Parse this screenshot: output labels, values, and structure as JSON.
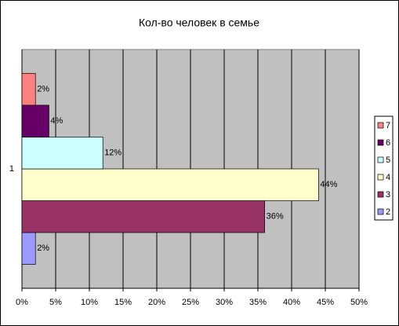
{
  "chart_data": {
    "type": "hbar",
    "title": "Кол-во человек в семье",
    "categories": [
      "1"
    ],
    "series": [
      {
        "name": "2",
        "color": "#9999ff",
        "values": [
          2
        ],
        "value_labels": [
          "2%"
        ]
      },
      {
        "name": "3",
        "color": "#993366",
        "values": [
          36
        ],
        "value_labels": [
          "36%"
        ]
      },
      {
        "name": "4",
        "color": "#ffffcc",
        "values": [
          44
        ],
        "value_labels": [
          "44%"
        ]
      },
      {
        "name": "5",
        "color": "#ccffff",
        "values": [
          12
        ],
        "value_labels": [
          "12%"
        ]
      },
      {
        "name": "6",
        "color": "#660066",
        "values": [
          4
        ],
        "value_labels": [
          "4%"
        ]
      },
      {
        "name": "7",
        "color": "#ff8080",
        "values": [
          2
        ],
        "value_labels": [
          "2%"
        ]
      }
    ],
    "xlim": [
      0,
      50
    ],
    "xticks": [
      {
        "value": 0,
        "label": "0%"
      },
      {
        "value": 5,
        "label": "5%"
      },
      {
        "value": 10,
        "label": "10%"
      },
      {
        "value": 15,
        "label": "15%"
      },
      {
        "value": 20,
        "label": "20%"
      },
      {
        "value": 25,
        "label": "25%"
      },
      {
        "value": 30,
        "label": "30%"
      },
      {
        "value": 35,
        "label": "35%"
      },
      {
        "value": 40,
        "label": "40%"
      },
      {
        "value": 45,
        "label": "45%"
      },
      {
        "value": 50,
        "label": "50%"
      }
    ],
    "grid": true,
    "legend": "right"
  }
}
